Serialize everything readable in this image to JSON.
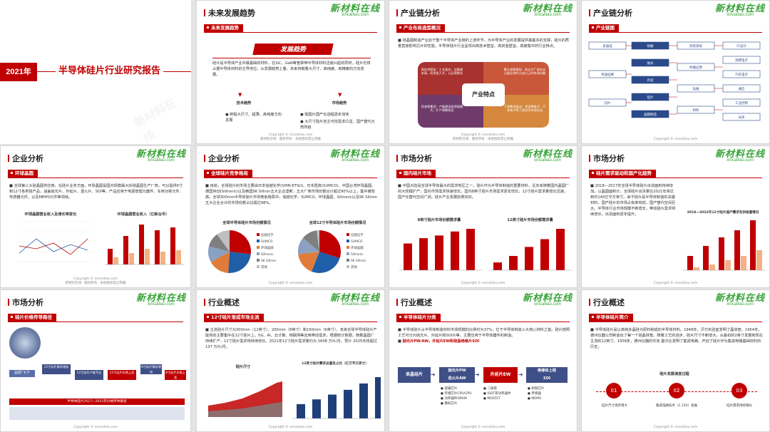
{
  "logo": {
    "cn": "新材料在线",
    "en": "xincailiao.com"
  },
  "copyright": "Copyright © xincailiao.com",
  "copyright2": "新材料在线 · 版权所有 · 未经授权禁止转载",
  "watermark": "新材料在线",
  "cover": {
    "year": "2021年",
    "title": "半导体硅片行业研究报告"
  },
  "s_future": {
    "title": "未来发展趋势",
    "section": "未来发展趋势",
    "banner": "发展趋势",
    "body": "硅片是半导体产业中最基础的材料，在SiC、GaN等宽禁带半导体材料迅速兴起的同时，硅片仍将占据半导体材料的主导地位，从发展趋势上看，未来将朝着大尺寸、高纯度、高精度的方向发展。",
    "col1_title": "技术趋势",
    "col1_items": [
      "制程大尺寸、超薄、高纯度方向发展"
    ],
    "col2_title": "市场趋势",
    "col2_items": [
      "硅圆片国产化进程逐步加快",
      "大尺寸硅片自主可控需求凸显，国产替代大势所趋"
    ]
  },
  "s_chain1": {
    "title": "产业链分析",
    "section": "产业布局选型概况",
    "body": "硅晶圆制造产业处于整个半导体产业链的上游环节，为半导体产业的发展提供最基本的支撑，硅片的质量直接影响芯片的性能。半导体硅片行业呈现出高技术壁垒、高资金壁垒、高度集中的行业特点。",
    "center": "产业特点",
    "q1": "高技术壁垒：工艺复杂，设备要求高，研发投入大，认证周期长",
    "q2": "寡头垄断格局：前五大厂商合计占据全球约九成以上的市场份额",
    "q3": "资本密集型：产能建设投资规模大，扩产周期较长",
    "q4": "下游需求驱动：受消费电子、汽车电子等下游应用市场拉动"
  },
  "s_chain2": {
    "title": "产业链分析",
    "section": "产业链图",
    "nodes": [
      "多晶硅",
      "单晶硅棒",
      "切片",
      "研磨",
      "抛光",
      "外延",
      "硅片",
      "晶圆制造",
      "封装测试",
      "终端应用",
      "设备",
      "材料",
      "IC设计",
      "消费电子",
      "汽车电子",
      "通信",
      "工业控制",
      "光伏"
    ]
  },
  "s_company": {
    "title": "企业分析",
    "section": "环球晶圆",
    "body": "全球第三大硅晶圆供应商，在硅片业务方面，环球晶圆是国内规模最大的硅晶圆生产厂商，可以提供6寸到12寸各类硅产品，涵盖抛光片、外延片、退火片、SOI等，产品应用于电源管理元器件、车用功率元件、传感器元件、以及MEMS元件等领域。",
    "chart1_title": "环球晶圆营业收入及增长率变化",
    "chart2_title": "环球晶圆营业收入（亿新台币）",
    "chart1_legend": [
      "营收",
      "增长率"
    ],
    "chart2_legend": [
      "营业收入",
      "毛利润"
    ]
  },
  "s_compete": {
    "title": "企业分析",
    "section": "全球硅片竞争格局",
    "body": "目前，全球硅片的市场主要由日本信越化学(SHIN-ETSU)、日本胜高(SUMCO)、中国台湾环球晶圆、德国世创(Siltronic)以及韩国SK Siltron五大企业垄断，五大厂商市场份额合计超过90%以上，集中度较高。全球300mm半导体硅片市场竞争格局中，信越化学、SUMCO、环球晶圆、Siltronic以及SK Siltron五大企业合计的市场份额占比超过98%。",
    "pie1_title": "全球半导体硅片市场份额情况",
    "pie2_title": "全球12寸半导体硅片市场份额情况",
    "legend": [
      "信越化学",
      "SUMCO",
      "环球晶圆",
      "Siltronic",
      "SK Siltron",
      "其他"
    ],
    "colors": [
      "#c00000",
      "#1f5fa8",
      "#e07b39",
      "#8aa1c1",
      "#7f7f7f",
      "#bfbfbf"
    ]
  },
  "s_market1": {
    "title": "市场分析",
    "section": "国内硅片市场",
    "body": "中国大陆是全球半导体最大的需求地区之一，硅片作为半导体制造的重要材料，近年来随着国内晶圆厂的大规模扩产，国内市场需求快速增长。国内8英寸硅片市场需求逐年增长，12寸硅片需求量增长迅速，国产化替代空间广阔，硅片产业发展前景向好。",
    "body_hl": "12寸硅片需求量增长迅速",
    "chart1_title": "8英寸硅片市场份额需求量",
    "chart2_title": "12英寸硅片市场份额需求量"
  },
  "s_market2": {
    "title": "市场分析",
    "section": "硅片需求驱动和国产化趋势",
    "body": "2018—2017年全球半导体硅片出货面积持续增加，以晶圆面积计，全球硅片出货量在2021年将达到约140亿平方英寸。由于硅片是半导体制造的关键材料，国产硅片的市场占有率较低，国产替代空间巨大。半导体行业市场规模不断增长，带动硅片需求持续增长，出货面积逐年提升。",
    "chart_title": "2018—2022年12寸硅片国产需求及供给量情况",
    "legend": [
      "国内需求",
      "国内供给"
    ]
  },
  "s_price": {
    "title": "市场分析",
    "section": "硅片价格传导路径",
    "footer": "半导体硅片2017—2021年价格传导路径",
    "steps": [
      "晶圆厂扩产",
      "12寸硅片需求增加",
      "12寸硅片产能不足",
      "12寸硅片价格上涨",
      "8寸硅片需求增加",
      "8寸硅片价格上涨"
    ]
  },
  "s_overview1": {
    "title": "行业概述",
    "section": "12寸硅片渐成市场主流",
    "body": "主流硅片尺寸为300mm（12英寸）、200mm（8英寸）和150mm（6英寸），未来全球半导体硅片产能将向主要集中在12寸硅片上。5G、AI、云计算、物联网等应用带动需求，根据统计数据，随着晶圆厂持续扩产，12寸硅片需求将持续增长。2021年12寸硅片需求量约为 1608 万片/月，预计 2025年将超过 137 万片/月。",
    "body_hl": "300mm（12英寸）",
    "pie_title": "硅片尺寸",
    "chart_title": "12英寸硅片需求总量及占比（亿万平方英寸）"
  },
  "s_overview2": {
    "title": "行业概述",
    "section": "半导体硅片分类",
    "body": "半导体硅片占半导体制造材料市场规模的比例约为37%，位于半导体制造三大核心材料之首。硅片按照工艺可分为抛光片、外延片和SOI片等，主要应用于半导体器件的制造。",
    "body_hl": "抛光片PW/AW，外延片EW和硅基绝缘片SOI",
    "flow": [
      "单晶硅片",
      "抛光片PW\n退火片AW",
      "外延片EW",
      "绝缘体上硅\nSOI"
    ],
    "items1": [
      "逻辑芯片",
      "存储芯片CPU/GPU",
      "功率器件DRAM",
      "模拟芯片"
    ],
    "items2": [
      "二极管",
      "IGBT等功率器件",
      "MOSFET"
    ],
    "items3": [
      "射频芯片",
      "传感器",
      "MEMS"
    ]
  },
  "s_overview3": {
    "title": "行业概述",
    "section": "半导体硅片简介",
    "body": "半导体硅片是以高纯多晶硅为原料制成的半导体材料。1948年，贝尔实验室发明了晶体管。1954年，德州仪器公司制造出了第一个硅晶体管。随着工艺的进步，硅片尺寸不断增大，从最初的2英寸发展到现在主流的12英寸。1958年，德州仪器的杰克·基尔比发明了集成电路，开创了硅片作为集成电路基础材料的历史。",
    "timeline_title": "硅片发展演变过程",
    "milestones": [
      "01",
      "02",
      "03"
    ],
    "labels": [
      "硅片尺寸逐步增大",
      "集成电路技术（1.13V）发展",
      "硅片需求持续增长"
    ]
  }
}
